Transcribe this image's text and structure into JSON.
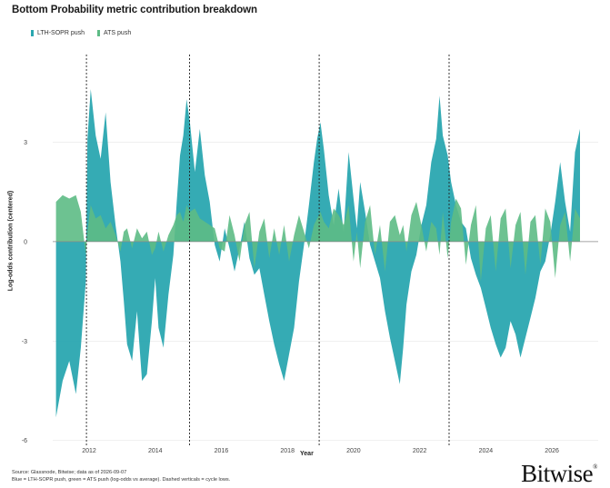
{
  "title": "Bottom Probability metric contribution breakdown",
  "legend": [
    {
      "label": "LTH-SOPR push",
      "color": "#2aa7b0"
    },
    {
      "label": "ATS push",
      "color": "#5dbb85"
    }
  ],
  "colors": {
    "lth": "#2aa7b0",
    "ats": "#5dbb85",
    "grid": "#e6e6e6",
    "zero": "#888888"
  },
  "footnote_1": "Source: Glassnode, Bitwise; data as of 2026-09-07",
  "footnote_2": "Blue = LTH-SOPR push, green = ATS push (log-odds vs average). Dashed verticals = cycle lows.",
  "brand": {
    "name": "Bitwise",
    "mark": "®"
  },
  "chart_data": {
    "type": "area",
    "title": "Bottom Probability metric contribution breakdown",
    "xlabel": "Year",
    "ylabel": "Log-odds contribution (centered)",
    "xlim": [
      2010.9,
      2027.4
    ],
    "ylim": [
      -6.2,
      5.7
    ],
    "yticks": [
      -6,
      -3,
      0,
      3
    ],
    "xticks": [
      2012,
      2014,
      2016,
      2018,
      2020,
      2022,
      2024,
      2026
    ],
    "grid": true,
    "legend_position": "top-left",
    "cycle_lows": [
      2011.92,
      2015.04,
      2018.96,
      2022.89
    ],
    "series": [
      {
        "name": "LTH-SOPR push",
        "x": [
          2011.0,
          2011.2,
          2011.4,
          2011.6,
          2011.75,
          2011.9,
          2011.95,
          2012.05,
          2012.2,
          2012.35,
          2012.5,
          2012.65,
          2012.8,
          2012.95,
          2013.05,
          2013.15,
          2013.3,
          2013.45,
          2013.6,
          2013.75,
          2013.9,
          2014.0,
          2014.1,
          2014.25,
          2014.4,
          2014.55,
          2014.65,
          2014.75,
          2014.85,
          2014.95,
          2015.05,
          2015.2,
          2015.35,
          2015.5,
          2015.65,
          2015.8,
          2015.95,
          2016.1,
          2016.25,
          2016.4,
          2016.55,
          2016.7,
          2016.85,
          2017.0,
          2017.15,
          2017.3,
          2017.45,
          2017.6,
          2017.75,
          2017.9,
          2018.05,
          2018.2,
          2018.35,
          2018.5,
          2018.65,
          2018.8,
          2018.9,
          2019.0,
          2019.1,
          2019.25,
          2019.4,
          2019.55,
          2019.7,
          2019.85,
          2020.0,
          2020.1,
          2020.2,
          2020.35,
          2020.5,
          2020.65,
          2020.8,
          2020.95,
          2021.1,
          2021.25,
          2021.4,
          2021.5,
          2021.6,
          2021.75,
          2021.9,
          2022.05,
          2022.2,
          2022.35,
          2022.5,
          2022.6,
          2022.7,
          2022.85,
          2022.95,
          2023.1,
          2023.25,
          2023.4,
          2023.55,
          2023.7,
          2023.85,
          2024.0,
          2024.15,
          2024.3,
          2024.45,
          2024.6,
          2024.75,
          2024.9,
          2025.05,
          2025.2,
          2025.35,
          2025.5,
          2025.65,
          2025.8,
          2025.95,
          2026.1,
          2026.25,
          2026.4,
          2026.55,
          2026.7,
          2026.85
        ],
        "values": [
          -5.3,
          -4.2,
          -3.6,
          -4.6,
          -3.2,
          -1.2,
          3.1,
          4.6,
          3.2,
          2.5,
          3.9,
          1.8,
          0.5,
          -0.6,
          -1.8,
          -3.1,
          -3.6,
          -2.1,
          -4.2,
          -4.0,
          -2.4,
          -1.1,
          -2.6,
          -3.2,
          -1.6,
          -0.4,
          1.2,
          2.6,
          3.2,
          4.3,
          3.6,
          2.1,
          3.4,
          2.0,
          1.2,
          -0.1,
          -0.6,
          0.4,
          -0.2,
          -0.9,
          -0.2,
          0.6,
          -0.5,
          -1.0,
          -0.8,
          -1.6,
          -2.4,
          -3.1,
          -3.7,
          -4.2,
          -3.4,
          -2.6,
          -1.2,
          -0.1,
          1.1,
          2.4,
          3.1,
          3.6,
          2.8,
          1.4,
          0.5,
          1.6,
          0.3,
          2.7,
          1.3,
          0.4,
          1.8,
          0.9,
          -0.1,
          -0.6,
          -1.1,
          -2.1,
          -2.9,
          -3.6,
          -4.3,
          -3.2,
          -1.9,
          -0.9,
          -0.4,
          0.5,
          1.1,
          2.4,
          3.1,
          4.4,
          3.2,
          2.6,
          1.8,
          1.1,
          0.6,
          0.4,
          -0.5,
          -1.0,
          -1.4,
          -2.0,
          -2.6,
          -3.1,
          -3.5,
          -3.2,
          -2.4,
          -2.8,
          -3.5,
          -2.9,
          -2.3,
          -1.7,
          -0.9,
          -0.6,
          0.2,
          1.2,
          2.4,
          1.2,
          0.3,
          2.7,
          3.4
        ]
      },
      {
        "name": "ATS push",
        "x": [
          2011.0,
          2011.2,
          2011.4,
          2011.6,
          2011.75,
          2011.9,
          2011.95,
          2012.05,
          2012.2,
          2012.35,
          2012.5,
          2012.65,
          2012.8,
          2012.95,
          2013.05,
          2013.15,
          2013.3,
          2013.45,
          2013.6,
          2013.75,
          2013.9,
          2014.0,
          2014.1,
          2014.25,
          2014.4,
          2014.55,
          2014.65,
          2014.75,
          2014.85,
          2014.95,
          2015.05,
          2015.2,
          2015.35,
          2015.5,
          2015.65,
          2015.8,
          2015.95,
          2016.1,
          2016.25,
          2016.4,
          2016.55,
          2016.7,
          2016.85,
          2017.0,
          2017.15,
          2017.3,
          2017.45,
          2017.6,
          2017.75,
          2017.9,
          2018.05,
          2018.2,
          2018.35,
          2018.5,
          2018.65,
          2018.8,
          2018.9,
          2019.0,
          2019.1,
          2019.25,
          2019.4,
          2019.55,
          2019.7,
          2019.85,
          2020.0,
          2020.1,
          2020.2,
          2020.35,
          2020.5,
          2020.65,
          2020.8,
          2020.95,
          2021.1,
          2021.25,
          2021.4,
          2021.5,
          2021.6,
          2021.75,
          2021.9,
          2022.05,
          2022.2,
          2022.35,
          2022.5,
          2022.6,
          2022.7,
          2022.85,
          2022.95,
          2023.1,
          2023.25,
          2023.4,
          2023.55,
          2023.7,
          2023.85,
          2024.0,
          2024.15,
          2024.3,
          2024.45,
          2024.6,
          2024.75,
          2024.9,
          2025.05,
          2025.2,
          2025.35,
          2025.5,
          2025.65,
          2025.8,
          2025.95,
          2026.1,
          2026.25,
          2026.4,
          2026.55,
          2026.7,
          2026.85
        ],
        "values": [
          1.2,
          1.4,
          1.3,
          1.4,
          0.9,
          -0.4,
          0.3,
          1.1,
          0.7,
          0.8,
          0.4,
          0.6,
          0.2,
          -0.3,
          0.3,
          0.4,
          -0.2,
          0.4,
          0.1,
          0.3,
          -0.4,
          -0.2,
          0.3,
          -0.3,
          0.2,
          0.5,
          0.8,
          0.9,
          0.6,
          1.1,
          0.9,
          1.0,
          0.7,
          0.6,
          0.5,
          0.4,
          -0.2,
          -0.3,
          0.8,
          0.2,
          -0.6,
          0.5,
          0.9,
          -0.8,
          0.3,
          0.7,
          -0.5,
          0.4,
          -0.4,
          0.5,
          -0.6,
          0.2,
          0.8,
          0.3,
          -0.2,
          0.5,
          0.7,
          0.9,
          0.6,
          0.4,
          1.0,
          0.8,
          0.5,
          1.1,
          -0.6,
          0.3,
          -0.8,
          0.6,
          1.1,
          -0.4,
          0.5,
          -0.9,
          0.6,
          0.8,
          0.2,
          0.5,
          -0.3,
          0.8,
          1.2,
          0.5,
          -0.3,
          0.6,
          0.4,
          -0.4,
          0.9,
          -0.5,
          0.6,
          1.3,
          1.0,
          -0.7,
          0.5,
          1.1,
          -1.2,
          0.4,
          0.8,
          -0.9,
          0.7,
          1.0,
          -0.8,
          0.5,
          0.9,
          -1.0,
          0.6,
          0.8,
          -0.7,
          1.0,
          0.6,
          -1.1,
          0.5,
          0.9,
          -0.6,
          1.0,
          0.7
        ]
      }
    ]
  }
}
